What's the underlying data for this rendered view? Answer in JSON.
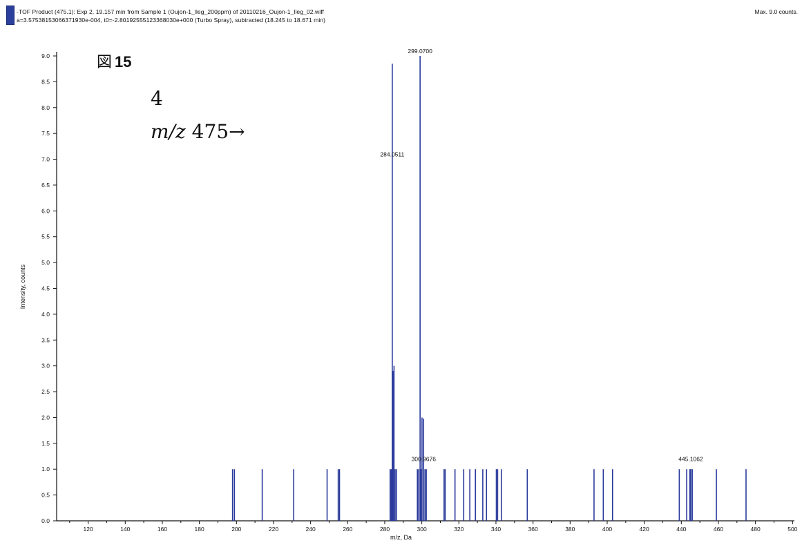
{
  "header": {
    "line1": "-TOF Product (475.1): Exp 2, 19.157 min from Sample 1 (Oujon-1_lleg_200ppm) of 20110216_Oujon-1_lleg_02.wiff",
    "line2": "a=3.57538153066371930e-004, t0=-2.80192555123368030e+000 (Turbo Spray), subtracted (18.245 to 18.671 min)",
    "max_label": "Max. 9.0 counts."
  },
  "figure_label": {
    "kanji": "図",
    "number": "15"
  },
  "annotation": {
    "line1": "4",
    "mz_italic": "m/z",
    "mz_text": " 475→"
  },
  "chart_data": {
    "type": "bar",
    "xlabel": "m/z, Da",
    "ylabel": "Intensity, counts",
    "xlim": [
      103,
      501
    ],
    "ylim": [
      0,
      9.0
    ],
    "xticks": [
      120,
      140,
      160,
      180,
      200,
      220,
      240,
      260,
      280,
      300,
      320,
      340,
      360,
      380,
      400,
      420,
      440,
      460,
      480,
      500
    ],
    "xtick_labels": [
      "120",
      "140",
      "160",
      "180",
      "200",
      "220",
      "240",
      "260",
      "280",
      "300",
      "320",
      "340",
      "360",
      "380",
      "400",
      "420",
      "440",
      "460",
      "480",
      "500"
    ],
    "yticks": [
      0.0,
      0.5,
      1.0,
      1.5,
      2.0,
      2.5,
      3.0,
      3.5,
      4.0,
      4.5,
      5.0,
      5.5,
      6.0,
      6.5,
      7.0,
      7.5,
      8.0,
      8.5,
      9.0
    ],
    "ytick_labels": [
      "0.0",
      "0.5",
      "1.0",
      "1.5",
      "2.0",
      "2.5",
      "3.0",
      "3.5",
      "4.0",
      "4.5",
      "5.0",
      "5.5",
      "6.0",
      "6.5",
      "7.0",
      "7.5",
      "8.0",
      "8.5",
      "9.0"
    ],
    "peaks": [
      {
        "mz": 197.9,
        "intensity": 1.0
      },
      {
        "mz": 198.9,
        "intensity": 1.0
      },
      {
        "mz": 213.9,
        "intensity": 1.0
      },
      {
        "mz": 230.9,
        "intensity": 1.0
      },
      {
        "mz": 248.9,
        "intensity": 1.0
      },
      {
        "mz": 254.9,
        "intensity": 1.0
      },
      {
        "mz": 255.6,
        "intensity": 1.0
      },
      {
        "mz": 282.9,
        "intensity": 1.0
      },
      {
        "mz": 283.5,
        "intensity": 1.0
      },
      {
        "mz": 284.0511,
        "intensity": 8.85
      },
      {
        "mz": 284.5,
        "intensity": 2.9
      },
      {
        "mz": 285.0,
        "intensity": 3.0
      },
      {
        "mz": 285.6,
        "intensity": 1.0
      },
      {
        "mz": 286.3,
        "intensity": 1.0
      },
      {
        "mz": 297.6,
        "intensity": 1.0
      },
      {
        "mz": 298.3,
        "intensity": 1.0
      },
      {
        "mz": 299.07,
        "intensity": 9.0
      },
      {
        "mz": 299.5,
        "intensity": 1.0
      },
      {
        "mz": 300.1,
        "intensity": 2.0
      },
      {
        "mz": 300.9676,
        "intensity": 1.98
      },
      {
        "mz": 301.7,
        "intensity": 1.0
      },
      {
        "mz": 302.4,
        "intensity": 1.0
      },
      {
        "mz": 312.0,
        "intensity": 1.0
      },
      {
        "mz": 312.6,
        "intensity": 1.0
      },
      {
        "mz": 317.9,
        "intensity": 1.0
      },
      {
        "mz": 322.6,
        "intensity": 1.0
      },
      {
        "mz": 325.9,
        "intensity": 1.0
      },
      {
        "mz": 328.9,
        "intensity": 1.0
      },
      {
        "mz": 332.9,
        "intensity": 1.0
      },
      {
        "mz": 334.9,
        "intensity": 1.0
      },
      {
        "mz": 340.2,
        "intensity": 1.0
      },
      {
        "mz": 340.9,
        "intensity": 1.0
      },
      {
        "mz": 342.9,
        "intensity": 1.0
      },
      {
        "mz": 356.9,
        "intensity": 1.0
      },
      {
        "mz": 392.9,
        "intensity": 1.0
      },
      {
        "mz": 397.9,
        "intensity": 1.0
      },
      {
        "mz": 402.9,
        "intensity": 1.0
      },
      {
        "mz": 438.9,
        "intensity": 1.0
      },
      {
        "mz": 442.9,
        "intensity": 1.0
      },
      {
        "mz": 444.6,
        "intensity": 1.0
      },
      {
        "mz": 445.1062,
        "intensity": 1.0
      },
      {
        "mz": 445.9,
        "intensity": 1.0
      },
      {
        "mz": 458.9,
        "intensity": 1.0
      },
      {
        "mz": 474.9,
        "intensity": 1.0
      }
    ],
    "peak_labels": [
      {
        "text": "284.0511",
        "mz": 284.0511,
        "intensity": 7.0
      },
      {
        "text": "299.0700",
        "mz": 299.07,
        "intensity": 9.0
      },
      {
        "text": "300.9676",
        "mz": 300.9676,
        "intensity": 1.1
      },
      {
        "text": "445.1062",
        "mz": 445.1062,
        "intensity": 1.1
      }
    ],
    "bar_color": "#2a3a9c",
    "axis_color": "#111111"
  }
}
